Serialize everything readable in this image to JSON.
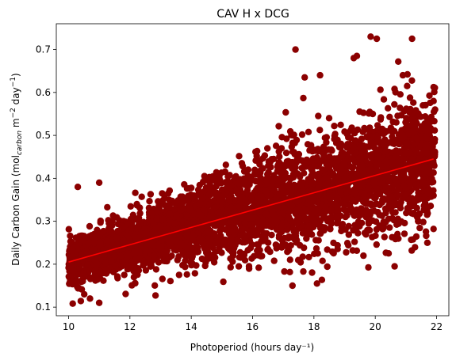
{
  "chart_data": {
    "type": "scatter",
    "title": "CAV H x DCG",
    "xlabel": "Photoperiod (hours day⁻¹)",
    "ylabel_parts": {
      "main": "Daily Carbon Gain (mol",
      "sub": "carbon",
      "mid": " m",
      "sup1": "−2",
      "mid2": " day",
      "sup2": "−1",
      "end": ")"
    },
    "xlim": [
      9.6,
      22.4
    ],
    "ylim": [
      0.08,
      0.76
    ],
    "xticks": [
      10,
      12,
      14,
      16,
      18,
      20,
      22
    ],
    "yticks": [
      0.1,
      0.2,
      0.3,
      0.4,
      0.5,
      0.6,
      0.7
    ],
    "xtick_labels": [
      "10",
      "12",
      "14",
      "16",
      "18",
      "20",
      "22"
    ],
    "ytick_labels": [
      "0.1",
      "0.2",
      "0.3",
      "0.4",
      "0.5",
      "0.6",
      "0.7"
    ],
    "point_color": "#8b0000",
    "trend_color": "#ff0000",
    "trend_line": {
      "x": [
        10.0,
        21.9
      ],
      "y": [
        0.205,
        0.445
      ]
    },
    "x_range": [
      10.0,
      21.95
    ],
    "point_count": 3800,
    "outliers": [
      {
        "x": 17.4,
        "y": 0.7
      },
      {
        "x": 19.85,
        "y": 0.73
      },
      {
        "x": 20.05,
        "y": 0.725
      },
      {
        "x": 21.2,
        "y": 0.725
      },
      {
        "x": 20.75,
        "y": 0.672
      },
      {
        "x": 20.9,
        "y": 0.64
      },
      {
        "x": 19.3,
        "y": 0.68
      },
      {
        "x": 19.4,
        "y": 0.685
      },
      {
        "x": 18.2,
        "y": 0.64
      },
      {
        "x": 17.7,
        "y": 0.635
      },
      {
        "x": 10.3,
        "y": 0.38
      },
      {
        "x": 11.0,
        "y": 0.39
      },
      {
        "x": 10.05,
        "y": 0.16
      },
      {
        "x": 11.0,
        "y": 0.11
      },
      {
        "x": 10.7,
        "y": 0.12
      },
      {
        "x": 17.3,
        "y": 0.15
      },
      {
        "x": 18.1,
        "y": 0.155
      },
      {
        "x": 21.7,
        "y": 0.25
      },
      {
        "x": 21.9,
        "y": 0.36
      },
      {
        "x": 21.95,
        "y": 0.56
      },
      {
        "x": 21.9,
        "y": 0.58
      }
    ]
  }
}
